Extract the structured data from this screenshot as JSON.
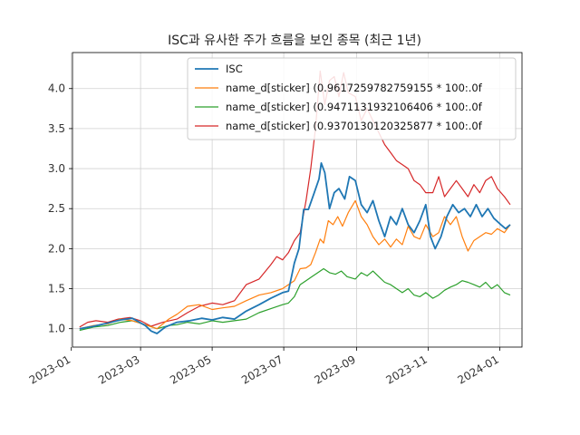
{
  "chart_data": {
    "type": "line",
    "title": "ISC과 유사한 주가 흐름을 보인 종목 (최근 1년)",
    "xlabel": "",
    "ylabel": "",
    "grid": true,
    "legend_position": "top-right",
    "xlim": [
      "2023-01-02",
      "2024-01-20"
    ],
    "ylim": [
      0.77,
      4.45
    ],
    "x_ticks": [
      "2023-01",
      "2023-03",
      "2023-05",
      "2023-07",
      "2023-09",
      "2023-11",
      "2024-01"
    ],
    "y_ticks": [
      1.0,
      1.5,
      2.0,
      2.5,
      3.0,
      3.5,
      4.0
    ],
    "x_tick_labels": [
      "2023-01",
      "2023-03",
      "2023-05",
      "2023-07",
      "2023-09",
      "2023-11",
      "2024-01"
    ],
    "y_tick_labels": [
      "1.0",
      "1.5",
      "2.0",
      "2.5",
      "3.0",
      "3.5",
      "4.0"
    ],
    "series": [
      {
        "name": "ISC",
        "color": "#1f77b4",
        "points": [
          [
            "2023-01-08",
            1.0
          ],
          [
            "2023-01-20",
            1.03
          ],
          [
            "2023-02-01",
            1.07
          ],
          [
            "2023-02-12",
            1.11
          ],
          [
            "2023-02-22",
            1.13
          ],
          [
            "2023-03-05",
            1.04
          ],
          [
            "2023-03-10",
            0.97
          ],
          [
            "2023-03-15",
            0.94
          ],
          [
            "2023-03-22",
            1.02
          ],
          [
            "2023-04-01",
            1.08
          ],
          [
            "2023-04-12",
            1.1
          ],
          [
            "2023-04-22",
            1.13
          ],
          [
            "2023-05-01",
            1.11
          ],
          [
            "2023-05-10",
            1.14
          ],
          [
            "2023-05-20",
            1.12
          ],
          [
            "2023-05-30",
            1.22
          ],
          [
            "2023-06-10",
            1.3
          ],
          [
            "2023-06-20",
            1.38
          ],
          [
            "2023-06-30",
            1.45
          ],
          [
            "2023-07-05",
            1.47
          ],
          [
            "2023-07-10",
            1.82
          ],
          [
            "2023-07-14",
            2.0
          ],
          [
            "2023-07-18",
            2.49
          ],
          [
            "2023-07-22",
            2.49
          ],
          [
            "2023-07-27",
            2.7
          ],
          [
            "2023-07-31",
            2.87
          ],
          [
            "2023-08-02",
            3.07
          ],
          [
            "2023-08-05",
            2.95
          ],
          [
            "2023-08-09",
            2.5
          ],
          [
            "2023-08-13",
            2.7
          ],
          [
            "2023-08-17",
            2.75
          ],
          [
            "2023-08-22",
            2.62
          ],
          [
            "2023-08-26",
            2.9
          ],
          [
            "2023-08-31",
            2.85
          ],
          [
            "2023-09-05",
            2.55
          ],
          [
            "2023-09-10",
            2.45
          ],
          [
            "2023-09-15",
            2.6
          ],
          [
            "2023-09-20",
            2.35
          ],
          [
            "2023-09-25",
            2.15
          ],
          [
            "2023-09-30",
            2.4
          ],
          [
            "2023-10-05",
            2.3
          ],
          [
            "2023-10-10",
            2.5
          ],
          [
            "2023-10-15",
            2.3
          ],
          [
            "2023-10-20",
            2.2
          ],
          [
            "2023-10-25",
            2.35
          ],
          [
            "2023-10-30",
            2.55
          ],
          [
            "2023-11-03",
            2.15
          ],
          [
            "2023-11-07",
            2.0
          ],
          [
            "2023-11-12",
            2.15
          ],
          [
            "2023-11-17",
            2.4
          ],
          [
            "2023-11-22",
            2.55
          ],
          [
            "2023-11-27",
            2.45
          ],
          [
            "2023-12-02",
            2.5
          ],
          [
            "2023-12-07",
            2.4
          ],
          [
            "2023-12-12",
            2.55
          ],
          [
            "2023-12-17",
            2.4
          ],
          [
            "2023-12-22",
            2.5
          ],
          [
            "2023-12-27",
            2.38
          ],
          [
            "2024-01-02",
            2.3
          ],
          [
            "2024-01-06",
            2.25
          ],
          [
            "2024-01-10",
            2.3
          ]
        ]
      },
      {
        "name": "name_d[sticker]  (0.9617259782759155 * 100:.0f",
        "color": "#ff7f0e",
        "points": [
          [
            "2023-01-08",
            1.0
          ],
          [
            "2023-01-20",
            1.04
          ],
          [
            "2023-02-01",
            1.06
          ],
          [
            "2023-02-12",
            1.12
          ],
          [
            "2023-02-22",
            1.1
          ],
          [
            "2023-03-05",
            1.05
          ],
          [
            "2023-03-15",
            1.0
          ],
          [
            "2023-03-25",
            1.12
          ],
          [
            "2023-04-01",
            1.18
          ],
          [
            "2023-04-10",
            1.28
          ],
          [
            "2023-04-20",
            1.3
          ],
          [
            "2023-05-01",
            1.24
          ],
          [
            "2023-05-10",
            1.26
          ],
          [
            "2023-05-20",
            1.28
          ],
          [
            "2023-05-30",
            1.35
          ],
          [
            "2023-06-10",
            1.42
          ],
          [
            "2023-06-20",
            1.45
          ],
          [
            "2023-06-30",
            1.5
          ],
          [
            "2023-07-05",
            1.55
          ],
          [
            "2023-07-10",
            1.6
          ],
          [
            "2023-07-15",
            1.75
          ],
          [
            "2023-07-20",
            1.76
          ],
          [
            "2023-07-24",
            1.8
          ],
          [
            "2023-07-28",
            1.95
          ],
          [
            "2023-08-01",
            2.12
          ],
          [
            "2023-08-04",
            2.07
          ],
          [
            "2023-08-08",
            2.35
          ],
          [
            "2023-08-12",
            2.3
          ],
          [
            "2023-08-16",
            2.4
          ],
          [
            "2023-08-20",
            2.28
          ],
          [
            "2023-08-25",
            2.45
          ],
          [
            "2023-08-31",
            2.6
          ],
          [
            "2023-09-05",
            2.4
          ],
          [
            "2023-09-10",
            2.3
          ],
          [
            "2023-09-15",
            2.15
          ],
          [
            "2023-09-20",
            2.05
          ],
          [
            "2023-09-25",
            2.12
          ],
          [
            "2023-09-30",
            2.02
          ],
          [
            "2023-10-05",
            2.12
          ],
          [
            "2023-10-10",
            2.05
          ],
          [
            "2023-10-15",
            2.28
          ],
          [
            "2023-10-20",
            2.15
          ],
          [
            "2023-10-25",
            2.12
          ],
          [
            "2023-10-30",
            2.3
          ],
          [
            "2023-11-05",
            2.15
          ],
          [
            "2023-11-10",
            2.2
          ],
          [
            "2023-11-15",
            2.4
          ],
          [
            "2023-11-20",
            2.3
          ],
          [
            "2023-11-25",
            2.4
          ],
          [
            "2023-11-30",
            2.15
          ],
          [
            "2023-12-05",
            1.97
          ],
          [
            "2023-12-10",
            2.1
          ],
          [
            "2023-12-15",
            2.15
          ],
          [
            "2023-12-20",
            2.2
          ],
          [
            "2023-12-25",
            2.18
          ],
          [
            "2023-12-30",
            2.25
          ],
          [
            "2024-01-05",
            2.2
          ],
          [
            "2024-01-10",
            2.3
          ]
        ]
      },
      {
        "name": "name_d[sticker]  (0.9471131932106406 * 100:.0f",
        "color": "#2ca02c",
        "points": [
          [
            "2023-01-08",
            0.98
          ],
          [
            "2023-01-20",
            1.02
          ],
          [
            "2023-02-01",
            1.04
          ],
          [
            "2023-02-12",
            1.08
          ],
          [
            "2023-02-22",
            1.1
          ],
          [
            "2023-03-05",
            1.05
          ],
          [
            "2023-03-15",
            1.0
          ],
          [
            "2023-03-25",
            1.04
          ],
          [
            "2023-04-01",
            1.05
          ],
          [
            "2023-04-10",
            1.08
          ],
          [
            "2023-04-20",
            1.06
          ],
          [
            "2023-05-01",
            1.1
          ],
          [
            "2023-05-10",
            1.08
          ],
          [
            "2023-05-20",
            1.1
          ],
          [
            "2023-05-30",
            1.12
          ],
          [
            "2023-06-10",
            1.2
          ],
          [
            "2023-06-20",
            1.25
          ],
          [
            "2023-06-30",
            1.3
          ],
          [
            "2023-07-05",
            1.32
          ],
          [
            "2023-07-10",
            1.4
          ],
          [
            "2023-07-15",
            1.55
          ],
          [
            "2023-07-20",
            1.6
          ],
          [
            "2023-07-25",
            1.65
          ],
          [
            "2023-07-30",
            1.7
          ],
          [
            "2023-08-04",
            1.75
          ],
          [
            "2023-08-09",
            1.7
          ],
          [
            "2023-08-14",
            1.68
          ],
          [
            "2023-08-19",
            1.72
          ],
          [
            "2023-08-24",
            1.65
          ],
          [
            "2023-08-31",
            1.62
          ],
          [
            "2023-09-05",
            1.7
          ],
          [
            "2023-09-10",
            1.66
          ],
          [
            "2023-09-15",
            1.72
          ],
          [
            "2023-09-20",
            1.65
          ],
          [
            "2023-09-25",
            1.58
          ],
          [
            "2023-09-30",
            1.55
          ],
          [
            "2023-10-05",
            1.5
          ],
          [
            "2023-10-10",
            1.45
          ],
          [
            "2023-10-15",
            1.5
          ],
          [
            "2023-10-20",
            1.42
          ],
          [
            "2023-10-25",
            1.4
          ],
          [
            "2023-10-30",
            1.45
          ],
          [
            "2023-11-05",
            1.38
          ],
          [
            "2023-11-10",
            1.42
          ],
          [
            "2023-11-15",
            1.48
          ],
          [
            "2023-11-20",
            1.52
          ],
          [
            "2023-11-25",
            1.55
          ],
          [
            "2023-11-30",
            1.6
          ],
          [
            "2023-12-05",
            1.58
          ],
          [
            "2023-12-10",
            1.55
          ],
          [
            "2023-12-15",
            1.52
          ],
          [
            "2023-12-20",
            1.58
          ],
          [
            "2023-12-25",
            1.5
          ],
          [
            "2023-12-30",
            1.55
          ],
          [
            "2024-01-05",
            1.45
          ],
          [
            "2024-01-10",
            1.42
          ]
        ]
      },
      {
        "name": "name_d[sticker]  (0.9370130120325877 * 100:.0f",
        "color": "#d62728",
        "points": [
          [
            "2023-01-08",
            1.02
          ],
          [
            "2023-01-15",
            1.08
          ],
          [
            "2023-01-22",
            1.1
          ],
          [
            "2023-02-01",
            1.08
          ],
          [
            "2023-02-10",
            1.12
          ],
          [
            "2023-02-20",
            1.14
          ],
          [
            "2023-03-01",
            1.1
          ],
          [
            "2023-03-10",
            1.03
          ],
          [
            "2023-03-20",
            1.08
          ],
          [
            "2023-04-01",
            1.12
          ],
          [
            "2023-04-10",
            1.2
          ],
          [
            "2023-04-20",
            1.28
          ],
          [
            "2023-05-01",
            1.32
          ],
          [
            "2023-05-10",
            1.3
          ],
          [
            "2023-05-20",
            1.35
          ],
          [
            "2023-05-30",
            1.55
          ],
          [
            "2023-06-10",
            1.62
          ],
          [
            "2023-06-20",
            1.8
          ],
          [
            "2023-06-25",
            1.9
          ],
          [
            "2023-06-30",
            1.86
          ],
          [
            "2023-07-05",
            1.95
          ],
          [
            "2023-07-10",
            2.1
          ],
          [
            "2023-07-15",
            2.2
          ],
          [
            "2023-07-20",
            2.6
          ],
          [
            "2023-07-24",
            3.0
          ],
          [
            "2023-07-28",
            3.5
          ],
          [
            "2023-08-01",
            4.22
          ],
          [
            "2023-08-05",
            3.8
          ],
          [
            "2023-08-09",
            4.1
          ],
          [
            "2023-08-13",
            4.15
          ],
          [
            "2023-08-17",
            3.9
          ],
          [
            "2023-08-21",
            4.2
          ],
          [
            "2023-08-25",
            3.95
          ],
          [
            "2023-08-31",
            3.9
          ],
          [
            "2023-09-05",
            3.6
          ],
          [
            "2023-09-10",
            3.75
          ],
          [
            "2023-09-15",
            3.6
          ],
          [
            "2023-09-20",
            3.45
          ],
          [
            "2023-09-25",
            3.3
          ],
          [
            "2023-09-30",
            3.2
          ],
          [
            "2023-10-05",
            3.1
          ],
          [
            "2023-10-10",
            3.05
          ],
          [
            "2023-10-15",
            3.0
          ],
          [
            "2023-10-20",
            2.85
          ],
          [
            "2023-10-25",
            2.8
          ],
          [
            "2023-10-30",
            2.7
          ],
          [
            "2023-11-05",
            2.7
          ],
          [
            "2023-11-10",
            2.9
          ],
          [
            "2023-11-15",
            2.65
          ],
          [
            "2023-11-20",
            2.75
          ],
          [
            "2023-11-25",
            2.85
          ],
          [
            "2023-11-30",
            2.75
          ],
          [
            "2023-12-05",
            2.65
          ],
          [
            "2023-12-10",
            2.8
          ],
          [
            "2023-12-15",
            2.7
          ],
          [
            "2023-12-20",
            2.85
          ],
          [
            "2023-12-25",
            2.9
          ],
          [
            "2023-12-30",
            2.75
          ],
          [
            "2024-01-05",
            2.65
          ],
          [
            "2024-01-10",
            2.55
          ]
        ]
      }
    ]
  }
}
